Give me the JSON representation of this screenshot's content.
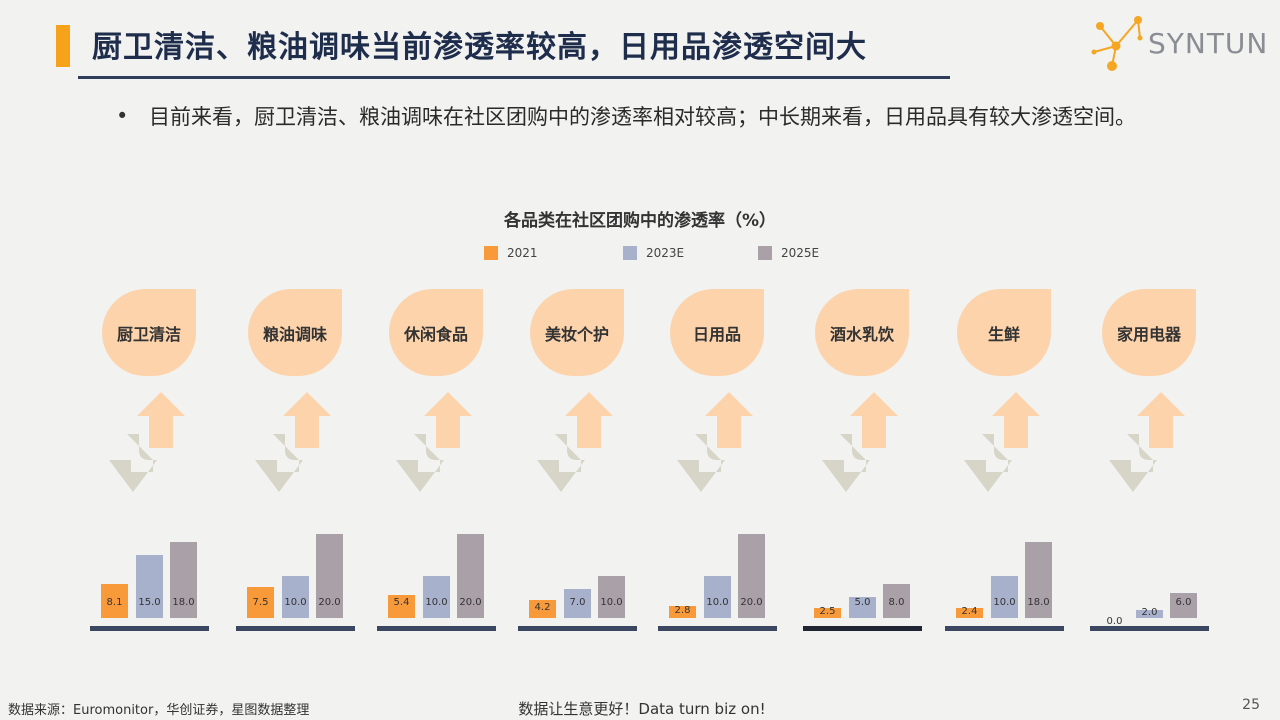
{
  "header": {
    "title": "厨卫清洁、粮油调味当前渗透率较高，日用品渗透空间大",
    "logo_text": "SYNTUN"
  },
  "bullet": {
    "mark": "•",
    "text": "目前来看，厨卫清洁、粮油调味在社区团购中的渗透率相对较高；中长期来看，日用品具有较大渗透空间。"
  },
  "colors": {
    "accent": "#f7a21b",
    "series_2021": "#f89a3a",
    "series_2023": "#a8b1cc",
    "series_2025": "#aaa0a8",
    "leaf": "#fdd3ac",
    "up_arrow": "#fdd3ac",
    "down_arrow": "#d6d5c8",
    "axis": "#3b4660"
  },
  "chart_data": {
    "type": "bar",
    "title": "各品类在社区团购中的渗透率（%）",
    "categories": [
      "厨卫清洁",
      "粮油调味",
      "休闲食品",
      "美妆个护",
      "日用品",
      "酒水乳饮",
      "生鲜",
      "家用电器"
    ],
    "series": [
      {
        "name": "2021",
        "values": [
          8.1,
          7.5,
          5.4,
          4.2,
          2.8,
          2.5,
          2.4,
          0.0
        ]
      },
      {
        "name": "2023E",
        "values": [
          15.0,
          10.0,
          10.0,
          7.0,
          10.0,
          5.0,
          10.0,
          2.0
        ]
      },
      {
        "name": "2025E",
        "values": [
          18.0,
          20.0,
          20.0,
          10.0,
          20.0,
          8.0,
          18.0,
          6.0
        ]
      }
    ],
    "value_labels": [
      [
        "8.1",
        "15.0",
        "18.0"
      ],
      [
        "7.5",
        "10.0",
        "20.0"
      ],
      [
        "5.4",
        "10.0",
        "20.0"
      ],
      [
        "4.2",
        "7.0",
        "10.0"
      ],
      [
        "2.8",
        "10.0",
        "20.0"
      ],
      [
        "2.5",
        "5.0",
        "8.0"
      ],
      [
        "2.4",
        "10.0",
        "18.0"
      ],
      [
        "0.0",
        "2.0",
        "6.0"
      ]
    ],
    "legend_position": "top",
    "grid": false
  },
  "footer": {
    "source": "数据来源：Euromonitor，华创证券，星图数据整理",
    "slogan": "数据让生意更好！Data turn biz on!",
    "page": "25"
  }
}
